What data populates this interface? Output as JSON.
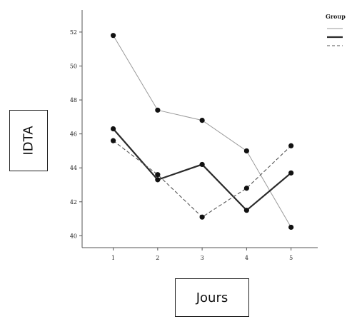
{
  "chart_data": {
    "type": "line",
    "xlabel": "Jours",
    "ylabel": "IDTA",
    "x": [
      1,
      2,
      3,
      4,
      5
    ],
    "xlim": [
      0.3,
      5.6
    ],
    "ylim": [
      39.3,
      53.3
    ],
    "yticks": [
      40,
      42,
      44,
      46,
      48,
      50,
      52
    ],
    "grid": false,
    "legend": {
      "title": "Group",
      "position": "top-right"
    },
    "series": [
      {
        "values": [
          51.8,
          47.4,
          46.8,
          45.0,
          40.5
        ],
        "color": "#9a9a9a",
        "style": "solid-thin"
      },
      {
        "values": [
          46.3,
          43.3,
          44.2,
          41.5,
          43.7
        ],
        "color": "#2a2a2a",
        "style": "solid-thick"
      },
      {
        "values": [
          45.6,
          43.6,
          41.1,
          42.8,
          45.3
        ],
        "color": "#555555",
        "style": "dashed"
      }
    ]
  }
}
